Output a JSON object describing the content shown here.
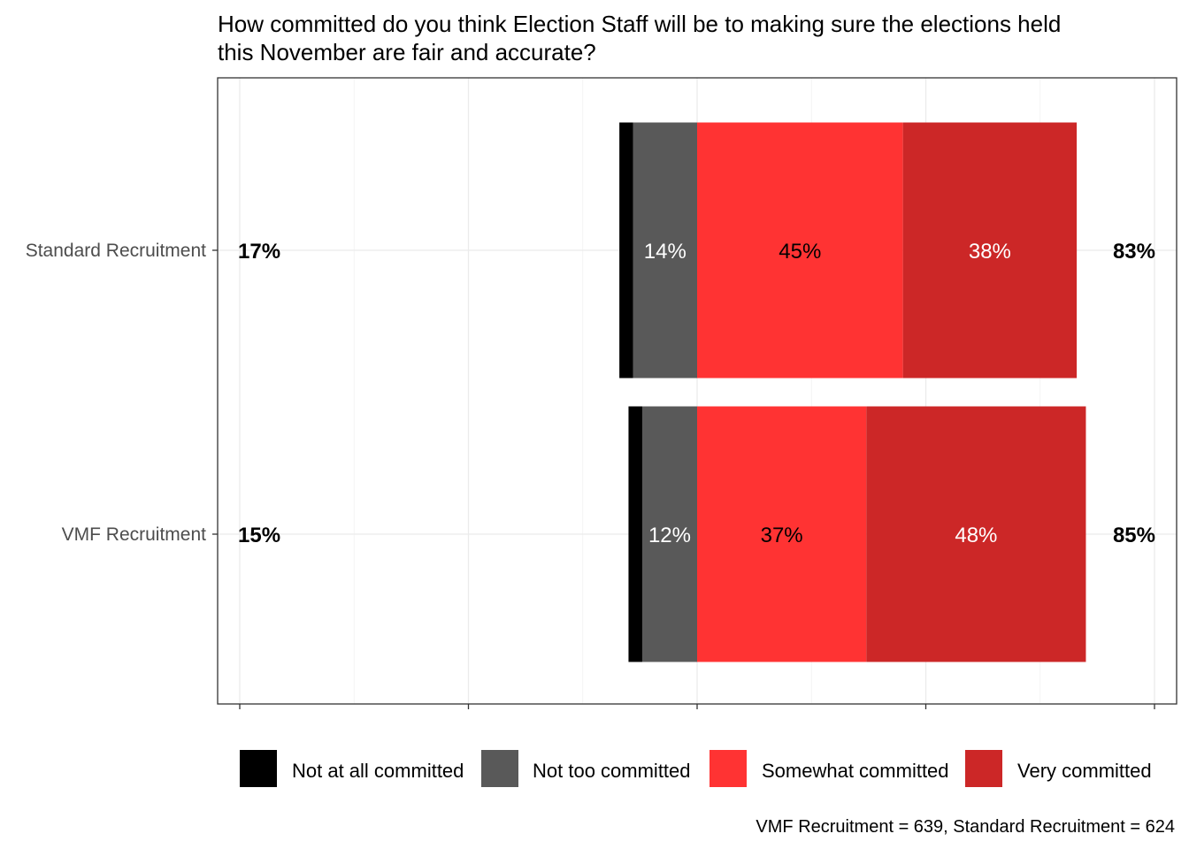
{
  "chart_data": {
    "type": "bar",
    "orientation": "horizontal",
    "stacked": "diverging",
    "title": "How committed do you think Election Staff will be to making sure the elections held this November are fair and accurate?",
    "title_lines": [
      "How committed do you think Election Staff will be to making sure the elections held",
      "this November are fair and accurate?"
    ],
    "categories": [
      "Standard Recruitment",
      "VMF Recruitment"
    ],
    "series": [
      {
        "name": "Not at all committed",
        "color": "#000000",
        "label_color": "#ffffff",
        "values": [
          3,
          3
        ],
        "labels": [
          "",
          ""
        ]
      },
      {
        "name": "Not too committed",
        "color": "#595959",
        "label_color": "#ffffff",
        "values": [
          14,
          12
        ],
        "labels": [
          "14%",
          "12%"
        ]
      },
      {
        "name": "Somewhat committed",
        "color": "#ff3333",
        "label_color": "#000000",
        "values": [
          45,
          37
        ],
        "labels": [
          "45%",
          "37%"
        ]
      },
      {
        "name": "Very committed",
        "color": "#cc2727",
        "label_color": "#ffffff",
        "values": [
          38,
          48
        ],
        "labels": [
          "38%",
          "48%"
        ]
      }
    ],
    "negative_series": [
      "Not at all committed",
      "Not too committed"
    ],
    "negative_totals": [
      "17%",
      "15%"
    ],
    "positive_totals": [
      "83%",
      "85%"
    ],
    "xlim": [
      -100,
      100
    ],
    "x_ticks": [
      -100,
      -50,
      0,
      50,
      100
    ],
    "grid": true,
    "legend_position": "bottom",
    "caption": "VMF Recruitment = 639, Standard Recruitment = 624"
  }
}
